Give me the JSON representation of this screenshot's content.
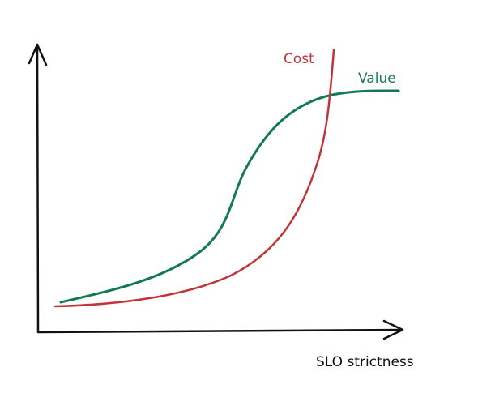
{
  "labels": {
    "cost": "Cost",
    "value": "Value",
    "x_axis": "SLO strictness"
  }
}
